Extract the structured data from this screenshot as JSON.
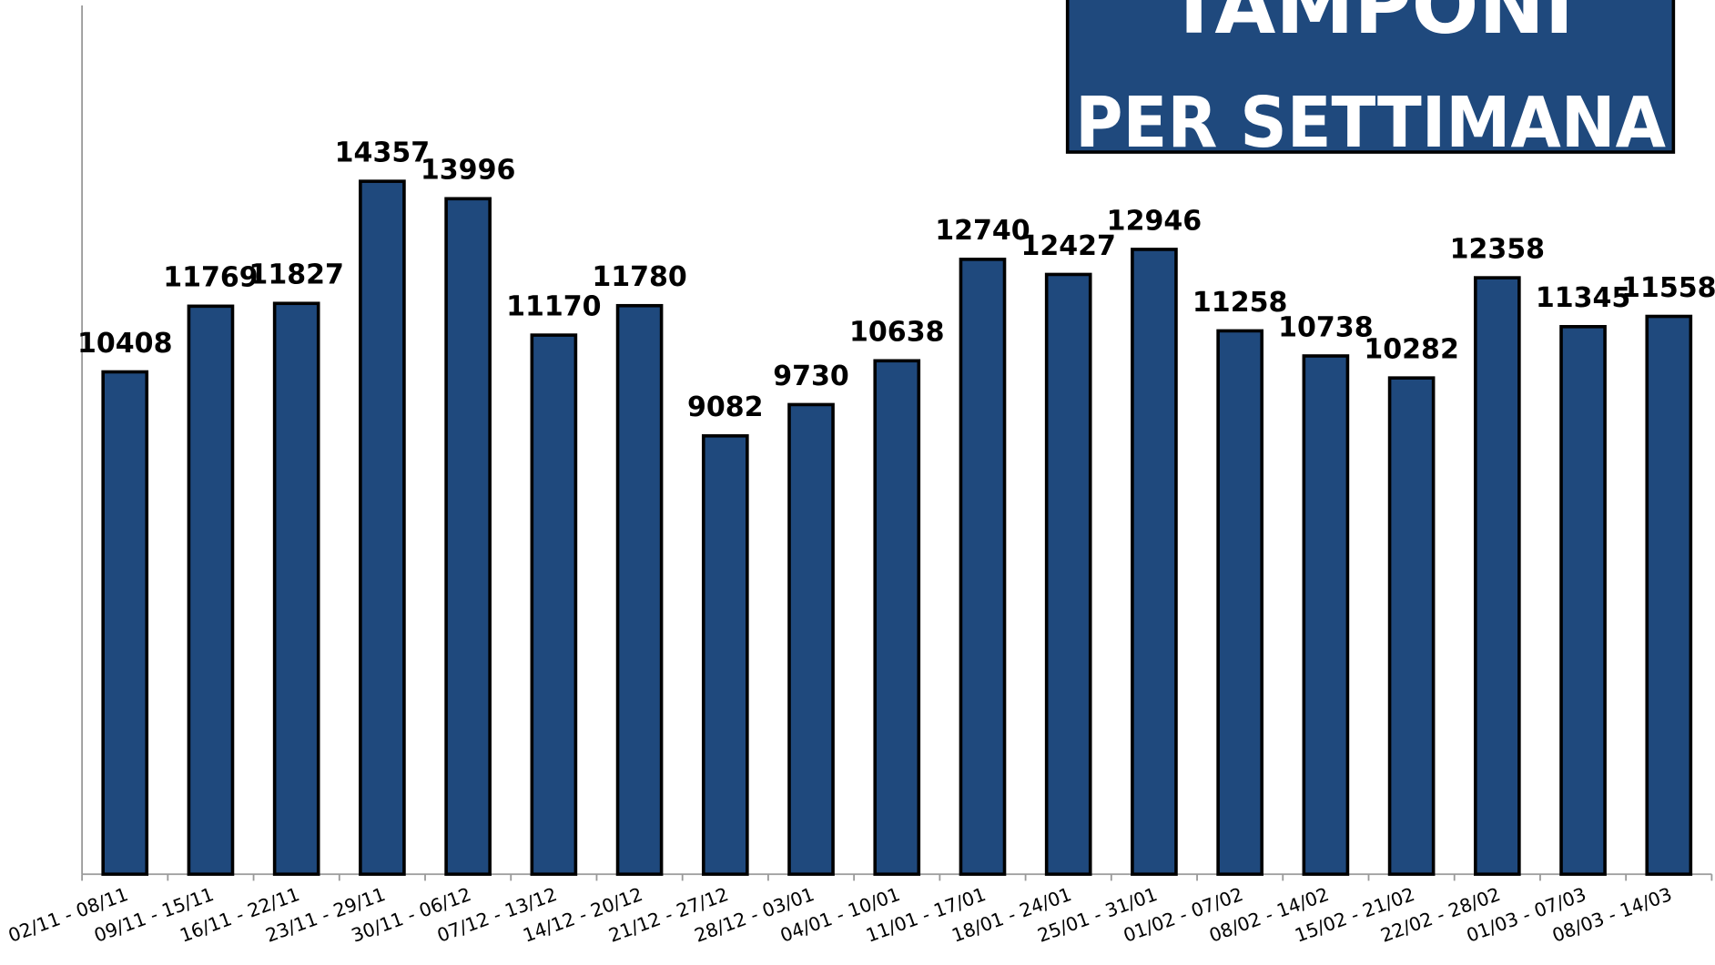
{
  "chart_data": {
    "type": "bar",
    "title": "TAMPONI",
    "subtitle": "PER SETTIMANA",
    "categories": [
      "02/11 - 08/11",
      "09/11 - 15/11",
      "16/11 - 22/11",
      "23/11 - 29/11",
      "30/11 - 06/12",
      "07/12 - 13/12",
      "14/12 - 20/12",
      "21/12 - 27/12",
      "28/12 - 03/01",
      "04/01 - 10/01",
      "11/01 - 17/01",
      "18/01 - 24/01",
      "25/01 - 31/01",
      "01/02 - 07/02",
      "08/02 - 14/02",
      "15/02 - 21/02",
      "22/02 - 28/02",
      "01/03 - 07/03",
      "08/03 - 14/03"
    ],
    "values": [
      10408,
      11769,
      11827,
      14357,
      13996,
      11170,
      11780,
      9082,
      9730,
      10638,
      12740,
      12427,
      12946,
      11258,
      10738,
      10282,
      12358,
      11345,
      11558
    ],
    "color": "#1f497d",
    "ylim": [
      0,
      18000
    ]
  }
}
